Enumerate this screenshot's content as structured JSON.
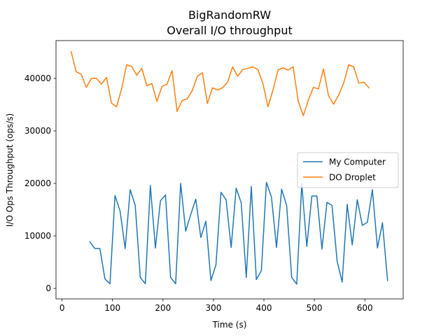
{
  "chart_data": {
    "type": "line",
    "title": "BigRandomRW",
    "subtitle": "Overall I/O throughput",
    "xlabel": "Time (s)",
    "ylabel": "I/O Ops Throughput (ops/s)",
    "xlim": [
      -12,
      676
    ],
    "ylim": [
      -2000,
      47200
    ],
    "xticks": [
      0,
      100,
      200,
      300,
      400,
      500,
      600
    ],
    "yticks": [
      0,
      10000,
      20000,
      30000,
      40000
    ],
    "grid": false,
    "legend_position": "center-right",
    "series": [
      {
        "name": "My Computer",
        "color": "#1f77b4",
        "x": [
          55,
          65,
          75,
          85,
          95,
          105,
          115,
          125,
          135,
          145,
          155,
          165,
          175,
          185,
          195,
          205,
          215,
          225,
          235,
          245,
          255,
          265,
          275,
          285,
          295,
          305,
          315,
          325,
          335,
          345,
          355,
          365,
          375,
          385,
          395,
          405,
          415,
          425,
          435,
          445,
          455,
          465,
          475,
          485,
          495,
          505,
          515,
          525,
          535,
          545,
          555,
          565,
          575,
          585,
          595,
          605,
          615,
          625,
          635,
          645
        ],
        "y": [
          8900,
          7600,
          7600,
          1800,
          900,
          17700,
          14700,
          7600,
          18800,
          15800,
          2100,
          900,
          19600,
          7700,
          16700,
          17800,
          2100,
          900,
          20000,
          10900,
          14100,
          17000,
          9700,
          12800,
          1500,
          4500,
          18300,
          16900,
          7800,
          19100,
          16300,
          2100,
          19400,
          1700,
          3400,
          20200,
          17400,
          7800,
          18900,
          15800,
          2100,
          800,
          19900,
          8000,
          17600,
          17600,
          7500,
          16400,
          15800,
          5200,
          1200,
          16000,
          8300,
          16900,
          12000,
          12600,
          18800,
          7700,
          12500,
          1500
        ]
      },
      {
        "name": "DO Droplet",
        "color": "#ff7f0e",
        "x": [
          18,
          28,
          38,
          48,
          58,
          68,
          78,
          88,
          98,
          108,
          118,
          128,
          138,
          148,
          158,
          168,
          178,
          188,
          198,
          208,
          218,
          228,
          238,
          248,
          258,
          268,
          278,
          288,
          298,
          308,
          318,
          328,
          338,
          348,
          358,
          368,
          378,
          388,
          398,
          408,
          418,
          428,
          438,
          448,
          458,
          468,
          478,
          488,
          498,
          508,
          518,
          528,
          538,
          548,
          558,
          568,
          578,
          588,
          598,
          608
        ],
        "y": [
          45100,
          41300,
          40800,
          38300,
          40000,
          40000,
          38900,
          40200,
          35300,
          34600,
          38000,
          42600,
          42300,
          40600,
          41900,
          38600,
          39000,
          35600,
          38500,
          38900,
          41500,
          33700,
          35800,
          36100,
          37700,
          40400,
          41100,
          35200,
          38200,
          37800,
          38200,
          39300,
          42200,
          40400,
          41700,
          41900,
          42200,
          41700,
          39000,
          34600,
          37800,
          41600,
          42000,
          41600,
          42200,
          35700,
          32900,
          35900,
          38300,
          38000,
          41800,
          36700,
          35100,
          36800,
          39100,
          42600,
          42200,
          39100,
          39300,
          38200
        ]
      }
    ]
  }
}
